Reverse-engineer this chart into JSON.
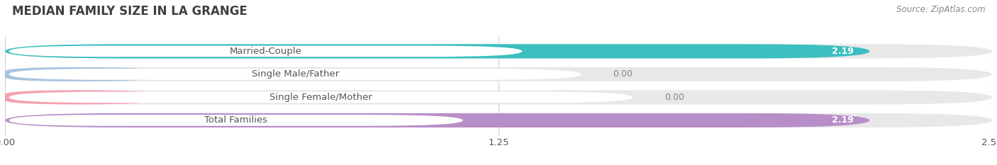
{
  "title": "MEDIAN FAMILY SIZE IN LA GRANGE",
  "source": "Source: ZipAtlas.com",
  "categories": [
    "Married-Couple",
    "Single Male/Father",
    "Single Female/Mother",
    "Total Families"
  ],
  "values": [
    2.19,
    0.0,
    0.0,
    2.19
  ],
  "bar_colors": [
    "#3bbfbf",
    "#a8c4e0",
    "#f4a0b0",
    "#b88ec8"
  ],
  "bar_bg_color": "#e8e8e8",
  "xlim": [
    0,
    2.5
  ],
  "xticks": [
    0.0,
    1.25,
    2.5
  ],
  "xtick_labels": [
    "0.00",
    "1.25",
    "2.50"
  ],
  "label_color": "#555555",
  "title_color": "#404040",
  "value_label_color": "#ffffff",
  "value_label_zero_color": "#888888",
  "background_color": "#ffffff",
  "bar_height": 0.62,
  "label_fontsize": 9.5,
  "title_fontsize": 12,
  "source_fontsize": 8.5,
  "value_fontsize": 9
}
